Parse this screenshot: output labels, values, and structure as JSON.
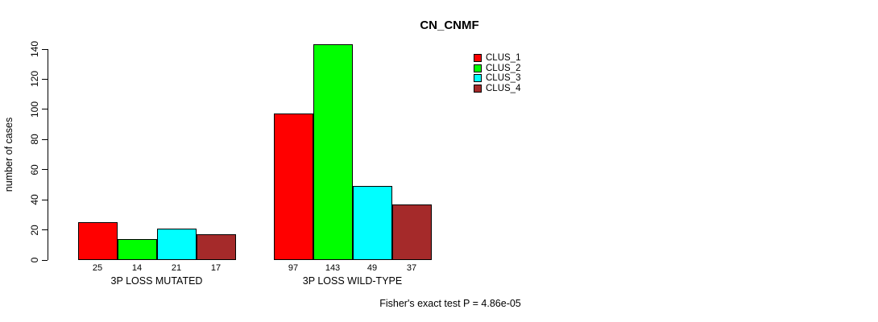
{
  "chart_data": {
    "type": "bar",
    "title": "CN_CNMF",
    "ylabel": "number of cases",
    "xlabel": "",
    "ylim": [
      0,
      140
    ],
    "yticks": [
      0,
      20,
      40,
      60,
      80,
      100,
      120,
      140
    ],
    "categories": [
      "3P LOSS MUTATED",
      "3P LOSS WILD-TYPE"
    ],
    "series": [
      {
        "name": "CLUS_1",
        "color": "#FF0000",
        "values": [
          25,
          97
        ]
      },
      {
        "name": "CLUS_2",
        "color": "#00FF00",
        "values": [
          14,
          143
        ]
      },
      {
        "name": "CLUS_3",
        "color": "#00FFFF",
        "values": [
          21,
          49
        ]
      },
      {
        "name": "CLUS_4",
        "color": "#A52A2A",
        "values": [
          17,
          37
        ]
      }
    ],
    "bar_value_labels_shown": true,
    "annotation": "Fisher's exact test P = 4.86e-05",
    "legend_position": "top-right",
    "grid": false,
    "background": "#ffffff",
    "axis_color": "#000000"
  },
  "legend": {
    "items": [
      {
        "label": "CLUS_1",
        "color": "#FF0000"
      },
      {
        "label": "CLUS_2",
        "color": "#00FF00"
      },
      {
        "label": "CLUS_3",
        "color": "#00FFFF"
      },
      {
        "label": "CLUS_4",
        "color": "#A52A2A"
      }
    ]
  }
}
